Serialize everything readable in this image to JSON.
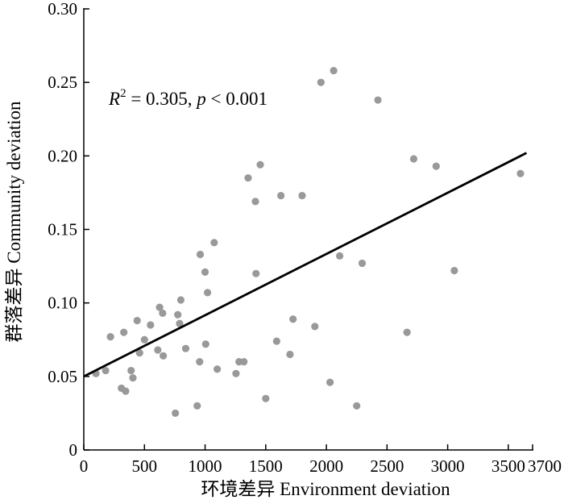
{
  "chart_data": {
    "type": "scatter",
    "title": "",
    "xlabel": "环境差异 Environment deviation",
    "ylabel": "群落差异 Community deviation",
    "xlim": [
      0,
      3700
    ],
    "ylim": [
      0,
      0.3
    ],
    "xticks": [
      0,
      500,
      1000,
      1500,
      2000,
      2500,
      3000,
      3500,
      3700
    ],
    "xtick_labels": [
      "0",
      "500",
      "1000",
      "1500",
      "2000",
      "2500",
      "3000",
      "3500",
      "3700"
    ],
    "yticks": [
      0,
      0.05,
      0.1,
      0.15,
      0.2,
      0.25,
      0.3
    ],
    "ytick_labels": [
      "0",
      "0.05",
      "0.10",
      "0.15",
      "0.20",
      "0.25",
      "0.30"
    ],
    "grid": false,
    "point_color": "#999999",
    "line_color": "#000000",
    "annotation": {
      "r_symbol": "R",
      "superscript": "2",
      "r_value_text": " = 0.305, ",
      "p_symbol": "p",
      "p_value_text": " < 0.001"
    },
    "trend_line": {
      "x": [
        0,
        3650
      ],
      "y": [
        0.05,
        0.202
      ]
    },
    "points": [
      {
        "x": 100,
        "y": 0.052
      },
      {
        "x": 180,
        "y": 0.054
      },
      {
        "x": 220,
        "y": 0.077
      },
      {
        "x": 310,
        "y": 0.042
      },
      {
        "x": 330,
        "y": 0.08
      },
      {
        "x": 345,
        "y": 0.04
      },
      {
        "x": 390,
        "y": 0.054
      },
      {
        "x": 405,
        "y": 0.049
      },
      {
        "x": 440,
        "y": 0.088
      },
      {
        "x": 460,
        "y": 0.066
      },
      {
        "x": 500,
        "y": 0.075
      },
      {
        "x": 550,
        "y": 0.085
      },
      {
        "x": 610,
        "y": 0.068
      },
      {
        "x": 625,
        "y": 0.097
      },
      {
        "x": 650,
        "y": 0.093
      },
      {
        "x": 655,
        "y": 0.064
      },
      {
        "x": 755,
        "y": 0.025
      },
      {
        "x": 775,
        "y": 0.092
      },
      {
        "x": 790,
        "y": 0.086
      },
      {
        "x": 800,
        "y": 0.102
      },
      {
        "x": 840,
        "y": 0.069
      },
      {
        "x": 935,
        "y": 0.03
      },
      {
        "x": 955,
        "y": 0.06
      },
      {
        "x": 960,
        "y": 0.133
      },
      {
        "x": 1000,
        "y": 0.121
      },
      {
        "x": 1005,
        "y": 0.072
      },
      {
        "x": 1020,
        "y": 0.107
      },
      {
        "x": 1075,
        "y": 0.141
      },
      {
        "x": 1100,
        "y": 0.055
      },
      {
        "x": 1255,
        "y": 0.052
      },
      {
        "x": 1280,
        "y": 0.06
      },
      {
        "x": 1320,
        "y": 0.06
      },
      {
        "x": 1355,
        "y": 0.185
      },
      {
        "x": 1415,
        "y": 0.169
      },
      {
        "x": 1420,
        "y": 0.12
      },
      {
        "x": 1455,
        "y": 0.194
      },
      {
        "x": 1500,
        "y": 0.035
      },
      {
        "x": 1590,
        "y": 0.074
      },
      {
        "x": 1625,
        "y": 0.173
      },
      {
        "x": 1700,
        "y": 0.065
      },
      {
        "x": 1725,
        "y": 0.089
      },
      {
        "x": 1800,
        "y": 0.173
      },
      {
        "x": 1905,
        "y": 0.084
      },
      {
        "x": 1955,
        "y": 0.25
      },
      {
        "x": 2030,
        "y": 0.046
      },
      {
        "x": 2060,
        "y": 0.258
      },
      {
        "x": 2110,
        "y": 0.132
      },
      {
        "x": 2250,
        "y": 0.03
      },
      {
        "x": 2295,
        "y": 0.127
      },
      {
        "x": 2425,
        "y": 0.238
      },
      {
        "x": 2665,
        "y": 0.08
      },
      {
        "x": 2720,
        "y": 0.198
      },
      {
        "x": 2905,
        "y": 0.193
      },
      {
        "x": 3055,
        "y": 0.122
      },
      {
        "x": 3600,
        "y": 0.188
      }
    ]
  }
}
